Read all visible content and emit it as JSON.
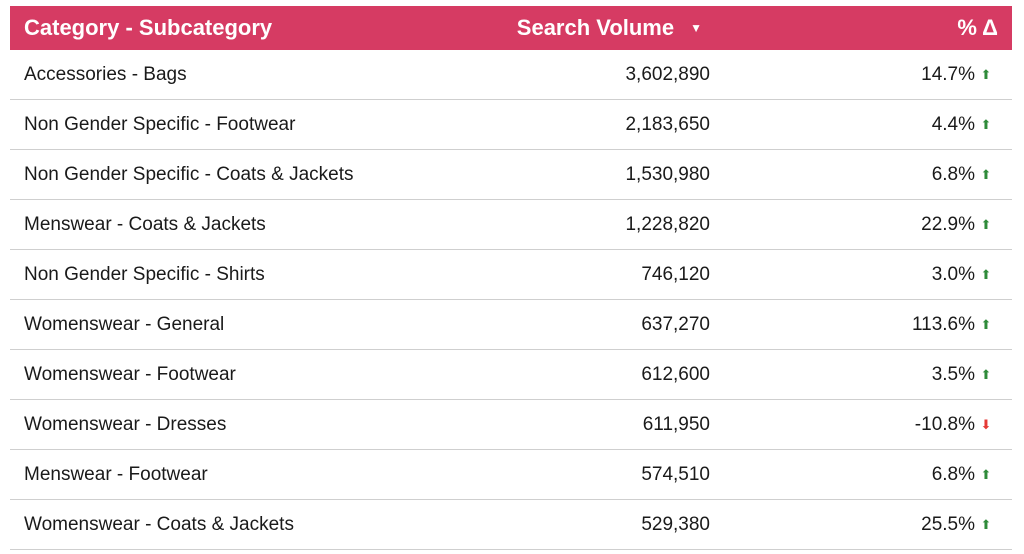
{
  "header": {
    "category": "Category - Subcategory",
    "volume": "Search Volume",
    "pct": "% Δ"
  },
  "chart_data": {
    "type": "table",
    "columns": [
      "Category - Subcategory",
      "Search Volume",
      "% Δ"
    ],
    "rows": [
      {
        "category": "Accessories - Bags",
        "volume": "3,602,890",
        "pct": "14.7%",
        "dir": "up"
      },
      {
        "category": "Non Gender Specific - Footwear",
        "volume": "2,183,650",
        "pct": "4.4%",
        "dir": "up"
      },
      {
        "category": "Non Gender Specific - Coats & Jackets",
        "volume": "1,530,980",
        "pct": "6.8%",
        "dir": "up"
      },
      {
        "category": "Menswear - Coats & Jackets",
        "volume": "1,228,820",
        "pct": "22.9%",
        "dir": "up"
      },
      {
        "category": "Non Gender Specific - Shirts",
        "volume": "746,120",
        "pct": "3.0%",
        "dir": "up"
      },
      {
        "category": "Womenswear - General",
        "volume": "637,270",
        "pct": "113.6%",
        "dir": "up"
      },
      {
        "category": "Womenswear - Footwear",
        "volume": "612,600",
        "pct": "3.5%",
        "dir": "up"
      },
      {
        "category": "Womenswear - Dresses",
        "volume": "611,950",
        "pct": "-10.8%",
        "dir": "down"
      },
      {
        "category": "Menswear - Footwear",
        "volume": "574,510",
        "pct": "6.8%",
        "dir": "up"
      },
      {
        "category": "Womenswear - Coats & Jackets",
        "volume": "529,380",
        "pct": "25.5%",
        "dir": "up"
      }
    ]
  },
  "colors": {
    "header": "#d63b63",
    "up": "#2e8b3a",
    "down": "#e53935"
  }
}
